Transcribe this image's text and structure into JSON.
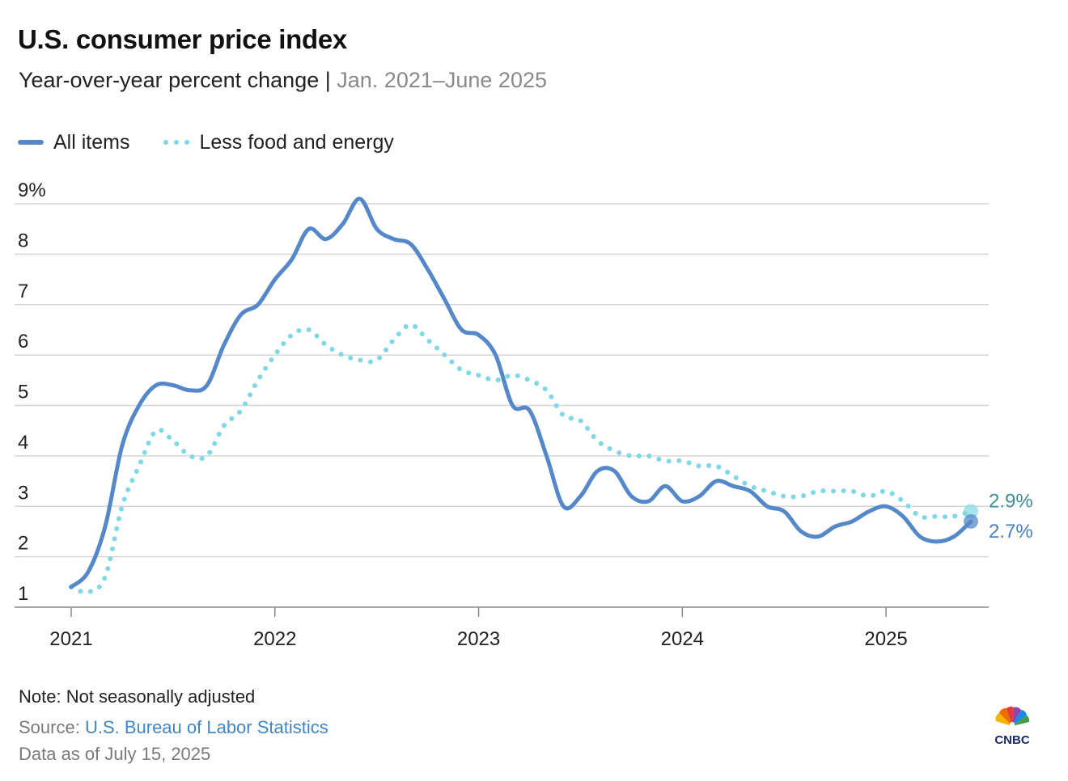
{
  "header": {
    "title": "U.S. consumer price index",
    "subtitle_main": "Year-over-year percent change",
    "subtitle_sep": " | ",
    "subtitle_range": "Jan. 2021–June 2025"
  },
  "colors": {
    "all_items": "#5588c8",
    "core": "#7fd8e6",
    "grid": "#d6d6d6",
    "axis": "#888888",
    "label_all_items": "#4a7fc0",
    "label_core": "#3f8f8f"
  },
  "footer": {
    "note": "Note: Not seasonally adjusted",
    "source_prefix": "Source: ",
    "source_link": "U.S. Bureau of Labor Statistics",
    "as_of": "Data as of July 15, 2025"
  },
  "logo": {
    "icon": "peacock-logo-icon",
    "text": "CNBC"
  },
  "chart_data": {
    "type": "line",
    "title": "U.S. consumer price index",
    "ylim": [
      1,
      9
    ],
    "y_ticks": [
      "9%",
      "8",
      "7",
      "6",
      "5",
      "4",
      "3",
      "2",
      "1"
    ],
    "x_ticks": [
      "2021",
      "2022",
      "2023",
      "2024",
      "2025"
    ],
    "legend_position": "top-left",
    "grid": true,
    "x": [
      "2021-01",
      "2021-02",
      "2021-03",
      "2021-04",
      "2021-05",
      "2021-06",
      "2021-07",
      "2021-08",
      "2021-09",
      "2021-10",
      "2021-11",
      "2021-12",
      "2022-01",
      "2022-02",
      "2022-03",
      "2022-04",
      "2022-05",
      "2022-06",
      "2022-07",
      "2022-08",
      "2022-09",
      "2022-10",
      "2022-11",
      "2022-12",
      "2023-01",
      "2023-02",
      "2023-03",
      "2023-04",
      "2023-05",
      "2023-06",
      "2023-07",
      "2023-08",
      "2023-09",
      "2023-10",
      "2023-11",
      "2023-12",
      "2024-01",
      "2024-02",
      "2024-03",
      "2024-04",
      "2024-05",
      "2024-06",
      "2024-07",
      "2024-08",
      "2024-09",
      "2024-10",
      "2024-11",
      "2024-12",
      "2025-01",
      "2025-02",
      "2025-03",
      "2025-04",
      "2025-05",
      "2025-06"
    ],
    "series": [
      {
        "name": "All items",
        "style": "solid",
        "values": [
          1.4,
          1.7,
          2.6,
          4.2,
          5.0,
          5.4,
          5.4,
          5.3,
          5.4,
          6.2,
          6.8,
          7.0,
          7.5,
          7.9,
          8.5,
          8.3,
          8.6,
          9.1,
          8.5,
          8.3,
          8.2,
          7.7,
          7.1,
          6.5,
          6.4,
          6.0,
          5.0,
          4.9,
          4.0,
          3.0,
          3.2,
          3.7,
          3.7,
          3.2,
          3.1,
          3.4,
          3.1,
          3.2,
          3.5,
          3.4,
          3.3,
          3.0,
          2.9,
          2.5,
          2.4,
          2.6,
          2.7,
          2.9,
          3.0,
          2.8,
          2.4,
          2.3,
          2.4,
          2.7
        ],
        "end_label": "2.7%"
      },
      {
        "name": "Less food and energy",
        "style": "dotted",
        "values": [
          1.4,
          1.3,
          1.6,
          3.0,
          3.8,
          4.5,
          4.3,
          4.0,
          4.0,
          4.6,
          4.9,
          5.5,
          6.0,
          6.4,
          6.5,
          6.2,
          6.0,
          5.9,
          5.9,
          6.3,
          6.6,
          6.3,
          6.0,
          5.7,
          5.6,
          5.5,
          5.6,
          5.5,
          5.3,
          4.8,
          4.7,
          4.3,
          4.1,
          4.0,
          4.0,
          3.9,
          3.9,
          3.8,
          3.8,
          3.6,
          3.4,
          3.3,
          3.2,
          3.2,
          3.3,
          3.3,
          3.3,
          3.2,
          3.3,
          3.1,
          2.8,
          2.8,
          2.8,
          2.9
        ],
        "end_label": "2.9%"
      }
    ]
  }
}
